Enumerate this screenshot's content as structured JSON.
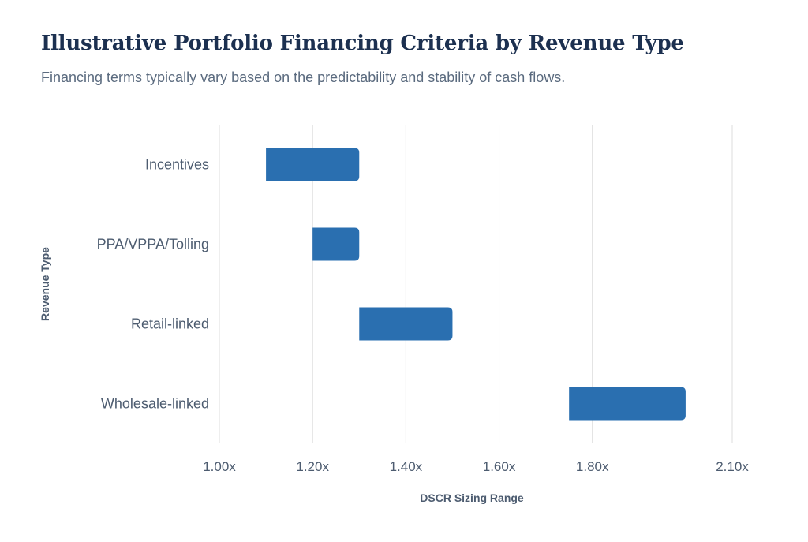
{
  "colors": {
    "title": "#1c3050",
    "subtitle": "#5b6b7f",
    "label": "#4d5c70",
    "axis_title": "#4d5c70",
    "bar": "#2a6fb0",
    "grid": "#dcdcdc"
  },
  "chart_data": {
    "type": "bar",
    "orientation": "horizontal",
    "floating": true,
    "title": "Illustrative Portfolio Financing Criteria by Revenue Type",
    "subtitle": "Financing terms typically vary based on the predictability and stability of cash flows.",
    "xlabel": "DSCR Sizing Range",
    "ylabel": "Revenue Type",
    "categories": [
      "Incentives",
      "PPA/VPPA/Tolling",
      "Retail-linked",
      "Wholesale-linked"
    ],
    "ranges": [
      [
        1.1,
        1.3
      ],
      [
        1.2,
        1.3
      ],
      [
        1.3,
        1.5
      ],
      [
        1.75,
        2.0
      ]
    ],
    "xlim": [
      1.0,
      2.1
    ],
    "xticks": [
      1.0,
      1.2,
      1.4,
      1.6,
      1.8,
      2.1
    ],
    "xtick_labels": [
      "1.00x",
      "1.20x",
      "1.40x",
      "1.60x",
      "1.80x",
      "2.10x"
    ],
    "grid": "vertical",
    "legend": "none"
  }
}
